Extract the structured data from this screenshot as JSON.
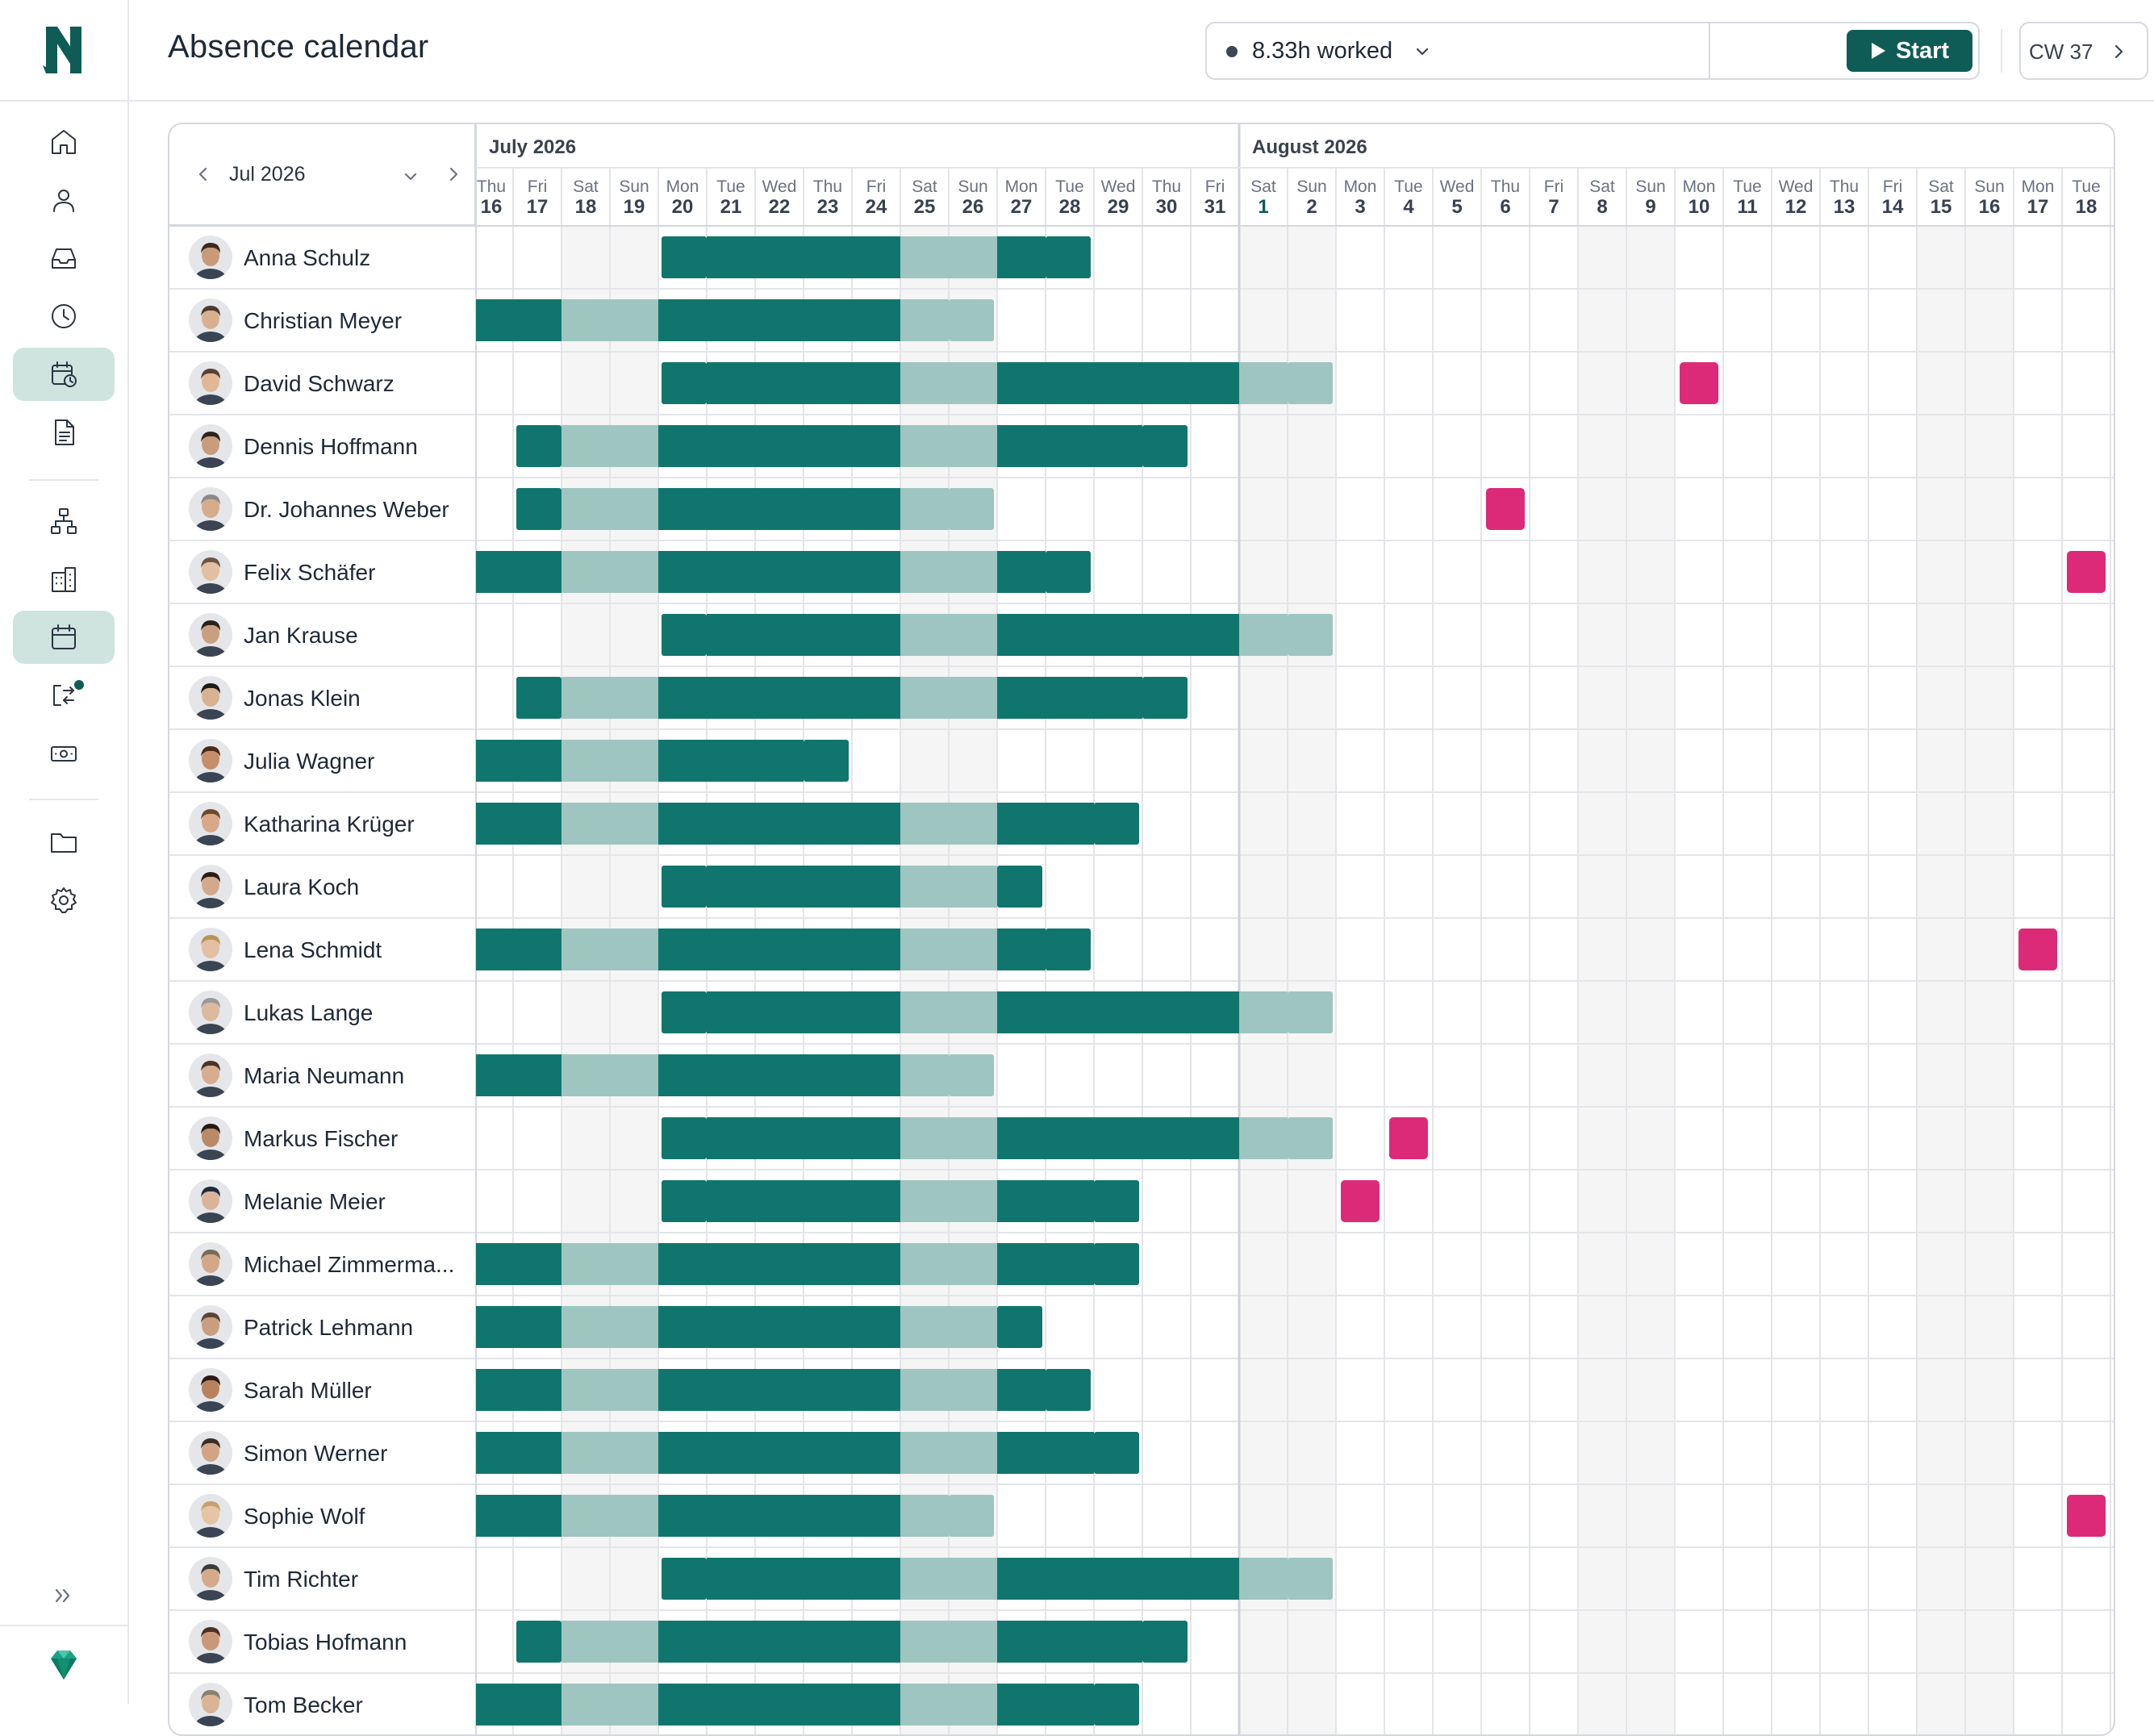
{
  "app": {
    "page_title": "Absence calendar",
    "timer": {
      "label": "8.33h worked",
      "start_label": "Start"
    },
    "calendar_week": "CW 37"
  },
  "sidebar": {
    "items": [
      {
        "name": "home-icon",
        "active": false
      },
      {
        "name": "person-icon",
        "active": false
      },
      {
        "name": "inbox-icon",
        "active": false
      },
      {
        "name": "clock-icon",
        "active": false
      },
      {
        "name": "calendar-clock-icon",
        "active": true
      },
      {
        "name": "document-icon",
        "active": false
      },
      {
        "name": "org-chart-icon",
        "active": false
      },
      {
        "name": "building-icon",
        "active": false
      },
      {
        "name": "calendar-icon",
        "active": true
      },
      {
        "name": "transfer-icon",
        "active": false,
        "badge": true
      },
      {
        "name": "money-icon",
        "active": false
      },
      {
        "name": "folder-icon",
        "active": false
      },
      {
        "name": "settings-icon",
        "active": false
      }
    ]
  },
  "calendar": {
    "picker_label": "Jul 2026",
    "months": [
      {
        "label": "July 2026"
      },
      {
        "label": "August 2026"
      }
    ],
    "days": [
      {
        "dow": "Thu",
        "date": "16"
      },
      {
        "dow": "Fri",
        "date": "17"
      },
      {
        "dow": "Sat",
        "date": "18"
      },
      {
        "dow": "Sun",
        "date": "19"
      },
      {
        "dow": "Mon",
        "date": "20"
      },
      {
        "dow": "Tue",
        "date": "21"
      },
      {
        "dow": "Wed",
        "date": "22"
      },
      {
        "dow": "Thu",
        "date": "23"
      },
      {
        "dow": "Fri",
        "date": "24"
      },
      {
        "dow": "Sat",
        "date": "25"
      },
      {
        "dow": "Sun",
        "date": "26"
      },
      {
        "dow": "Mon",
        "date": "27"
      },
      {
        "dow": "Tue",
        "date": "28"
      },
      {
        "dow": "Wed",
        "date": "29"
      },
      {
        "dow": "Thu",
        "date": "30"
      },
      {
        "dow": "Fri",
        "date": "31"
      },
      {
        "dow": "Sat",
        "date": "1"
      },
      {
        "dow": "Sun",
        "date": "2"
      },
      {
        "dow": "Mon",
        "date": "3"
      },
      {
        "dow": "Tue",
        "date": "4"
      },
      {
        "dow": "Wed",
        "date": "5"
      },
      {
        "dow": "Thu",
        "date": "6"
      },
      {
        "dow": "Fri",
        "date": "7"
      },
      {
        "dow": "Sat",
        "date": "8"
      },
      {
        "dow": "Sun",
        "date": "9"
      },
      {
        "dow": "Mon",
        "date": "10"
      },
      {
        "dow": "Tue",
        "date": "11"
      },
      {
        "dow": "Wed",
        "date": "12"
      },
      {
        "dow": "Thu",
        "date": "13"
      },
      {
        "dow": "Fri",
        "date": "14"
      },
      {
        "dow": "Sat",
        "date": "15"
      },
      {
        "dow": "Sun",
        "date": "16"
      },
      {
        "dow": "Mon",
        "date": "17"
      },
      {
        "dow": "Tue",
        "date": "18"
      }
    ],
    "colors": {
      "vacation": "#10766d",
      "vacation_weekend": "#9fc5c0",
      "sick": "#dc2a78",
      "weekend_bg": "#f5f5f5",
      "highlight_date": "#0e5c55"
    },
    "employees": [
      {
        "name": "Anna Schulz",
        "skin": "#c99a7a",
        "hair": "#3b2a20",
        "absences": [
          {
            "start": 4,
            "end": 12
          }
        ]
      },
      {
        "name": "Christian Meyer",
        "skin": "#d9b08f",
        "hair": "#4a3a30",
        "absences": [
          {
            "start": -1,
            "end": 10
          }
        ]
      },
      {
        "name": "David Schwarz",
        "skin": "#e0b896",
        "hair": "#5a4030",
        "absences": [
          {
            "start": 4,
            "end": 17
          }
        ],
        "sick": [
          25
        ]
      },
      {
        "name": "Dennis Hoffmann",
        "skin": "#c89c7c",
        "hair": "#2e241c",
        "absences": [
          {
            "start": 1,
            "end": 14
          }
        ]
      },
      {
        "name": "Dr. Johannes Weber",
        "skin": "#d6ad8c",
        "hair": "#8a8a8a",
        "absences": [
          {
            "start": 1,
            "end": 10
          }
        ],
        "sick": [
          21
        ]
      },
      {
        "name": "Felix Schäfer",
        "skin": "#e2bfa0",
        "hair": "#6b5646",
        "absences": [
          {
            "start": -1,
            "end": 12
          }
        ],
        "sick": [
          33
        ]
      },
      {
        "name": "Jan Krause",
        "skin": "#c9a07f",
        "hair": "#2a211a",
        "absences": [
          {
            "start": 4,
            "end": 17
          }
        ]
      },
      {
        "name": "Jonas Klein",
        "skin": "#d8b293",
        "hair": "#1e1a16",
        "absences": [
          {
            "start": 1,
            "end": 14
          }
        ]
      },
      {
        "name": "Julia Wagner",
        "skin": "#c48f6a",
        "hair": "#4b2a1a",
        "absences": [
          {
            "start": -1,
            "end": 7
          }
        ]
      },
      {
        "name": "Katharina Krüger",
        "skin": "#d8a888",
        "hair": "#6b4a2c",
        "absences": [
          {
            "start": -1,
            "end": 13
          }
        ]
      },
      {
        "name": "Laura Koch",
        "skin": "#d3a98c",
        "hair": "#2b1d16",
        "absences": [
          {
            "start": 4,
            "end": 11
          }
        ]
      },
      {
        "name": "Lena Schmidt",
        "skin": "#e3c0a2",
        "hair": "#b8945a",
        "absences": [
          {
            "start": -1,
            "end": 12
          }
        ],
        "sick": [
          32
        ]
      },
      {
        "name": "Lukas Lange",
        "skin": "#dcbaa0",
        "hair": "#9a9a9a",
        "absences": [
          {
            "start": 4,
            "end": 17
          }
        ]
      },
      {
        "name": "Maria Neumann",
        "skin": "#d6ad90",
        "hair": "#4a3428",
        "absences": [
          {
            "start": -1,
            "end": 10
          }
        ]
      },
      {
        "name": "Markus Fischer",
        "skin": "#b98a68",
        "hair": "#231a14",
        "absences": [
          {
            "start": 4,
            "end": 17
          }
        ],
        "sick": [
          19
        ]
      },
      {
        "name": "Melanie Meier",
        "skin": "#d9b49a",
        "hair": "#1f2a3a",
        "absences": [
          {
            "start": 4,
            "end": 13
          }
        ],
        "sick": [
          18
        ]
      },
      {
        "name": "Michael Zimmerma...",
        "skin": "#d2a888",
        "hair": "#7a6a5a",
        "absences": [
          {
            "start": -1,
            "end": 13
          }
        ]
      },
      {
        "name": "Patrick Lehmann",
        "skin": "#c99e80",
        "hair": "#5a4434",
        "absences": [
          {
            "start": -1,
            "end": 11
          }
        ]
      },
      {
        "name": "Sarah Müller",
        "skin": "#b8825e",
        "hair": "#2a1a12",
        "absences": [
          {
            "start": -1,
            "end": 12
          }
        ]
      },
      {
        "name": "Simon Werner",
        "skin": "#d0a484",
        "hair": "#3a2e24",
        "absences": [
          {
            "start": -1,
            "end": 13
          }
        ]
      },
      {
        "name": "Sophie Wolf",
        "skin": "#e6c4a6",
        "hair": "#c8a070",
        "absences": [
          {
            "start": -1,
            "end": 10
          }
        ],
        "sick": [
          33
        ]
      },
      {
        "name": "Tim Richter",
        "skin": "#d4aa8a",
        "hair": "#3a3a3a",
        "absences": [
          {
            "start": 4,
            "end": 17
          }
        ]
      },
      {
        "name": "Tobias Hofmann",
        "skin": "#c89878",
        "hair": "#4a3020",
        "absences": [
          {
            "start": 1,
            "end": 14
          }
        ]
      },
      {
        "name": "Tom Becker",
        "skin": "#dab496",
        "hair": "#8a8070",
        "absences": [
          {
            "start": -1,
            "end": 13
          }
        ]
      }
    ]
  }
}
